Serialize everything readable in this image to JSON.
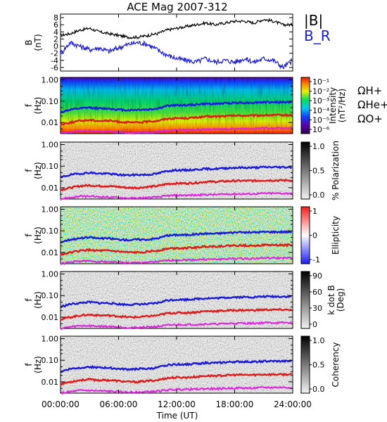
{
  "title": "ACE Mag 2007-312",
  "chart_data": [
    {
      "type": "line",
      "ylabel": "B (nT)",
      "ylim": [
        -7,
        9
      ],
      "yticks": [
        "8",
        "6",
        "4",
        "2",
        "0",
        "-2",
        "-4",
        "-6"
      ],
      "ytick_values": [
        8,
        6,
        4,
        2,
        0,
        -2,
        -4,
        -6
      ],
      "series": [
        {
          "name": "|B|",
          "color": "#000000",
          "x": [
            0,
            1,
            2,
            3,
            4,
            5,
            6,
            7,
            8,
            9,
            10,
            11,
            12,
            13,
            14,
            15,
            16,
            17,
            18,
            19,
            20,
            21,
            22,
            23,
            24
          ],
          "y": [
            3.0,
            3.5,
            4.5,
            5.0,
            4.0,
            3.5,
            3.0,
            2.5,
            2.5,
            3.0,
            3.5,
            4.5,
            5.0,
            5.5,
            6.0,
            6.5,
            6.0,
            6.5,
            7.0,
            7.0,
            6.5,
            7.5,
            7.0,
            6.0,
            6.0
          ]
        },
        {
          "name": "B_R",
          "color": "#1a1adc",
          "x": [
            0,
            1,
            2,
            3,
            4,
            5,
            6,
            7,
            8,
            9,
            10,
            11,
            12,
            13,
            14,
            15,
            16,
            17,
            18,
            19,
            20,
            21,
            22,
            23,
            24
          ],
          "y": [
            -2.0,
            1.0,
            0.0,
            -1.0,
            -0.5,
            -1.5,
            -0.5,
            0.5,
            1.0,
            0.5,
            -1.0,
            -2.5,
            -3.5,
            -4.0,
            -4.5,
            -3.5,
            -4.5,
            -4.0,
            -4.5,
            -3.5,
            -4.5,
            -3.5,
            -4.0,
            -6.0,
            -4.0
          ]
        }
      ]
    },
    {
      "type": "heatmap",
      "ylabel": "f (Hz)",
      "yscale": "log",
      "ylim": [
        0.003,
        1.3
      ],
      "yticks": [
        "1.00",
        "0.10",
        "0.01"
      ],
      "colorbar": {
        "label": "Intensity (nT²/Hz)",
        "ticks": [
          "10⁻¹",
          "10⁻²",
          "10⁻³",
          "10⁻⁴",
          "10⁻⁵",
          "10⁻⁶"
        ],
        "scheme": "rainbow"
      },
      "legend": [
        "ΩH+",
        "ΩHe+",
        "ΩO+"
      ]
    },
    {
      "type": "heatmap",
      "ylabel": "f (Hz)",
      "yscale": "log",
      "colorbar": {
        "label": "% Polarization",
        "ticks": [
          "1.0",
          "0.5",
          "0.0"
        ],
        "scheme": "gray"
      }
    },
    {
      "type": "heatmap",
      "ylabel": "f (Hz)",
      "yscale": "log",
      "colorbar": {
        "label": "Ellipticity",
        "ticks": [
          "1",
          "0",
          "-1"
        ],
        "scheme": "bwr"
      }
    },
    {
      "type": "heatmap",
      "ylabel": "f (Hz)",
      "yscale": "log",
      "colorbar": {
        "label": "k dot B (Deg)",
        "ticks": [
          "90",
          "60",
          "30",
          "0"
        ],
        "scheme": "gray"
      }
    },
    {
      "type": "heatmap",
      "ylabel": "f (Hz)",
      "yscale": "log",
      "colorbar": {
        "label": "Coherency",
        "ticks": [
          "1.0",
          "0.5",
          "0.0"
        ],
        "scheme": "gray"
      }
    }
  ],
  "gyrofrequency_lines": [
    {
      "name": "ΩH+",
      "color": "#1a1adc",
      "x": [
        0,
        1,
        2,
        3,
        4,
        5,
        6,
        7,
        8,
        9,
        10,
        11,
        12,
        13,
        14,
        15,
        16,
        17,
        18,
        19,
        20,
        21,
        22,
        23,
        24
      ],
      "y": [
        0.03,
        0.04,
        0.045,
        0.05,
        0.045,
        0.045,
        0.04,
        0.038,
        0.04,
        0.04,
        0.045,
        0.06,
        0.065,
        0.065,
        0.07,
        0.075,
        0.075,
        0.08,
        0.085,
        0.085,
        0.085,
        0.09,
        0.09,
        0.09,
        0.09
      ]
    },
    {
      "name": "ΩHe+",
      "color": "#e01a1a",
      "x": [
        0,
        1,
        2,
        3,
        4,
        5,
        6,
        7,
        8,
        9,
        10,
        11,
        12,
        13,
        14,
        15,
        16,
        17,
        18,
        19,
        20,
        21,
        22,
        23,
        24
      ],
      "y": [
        0.008,
        0.01,
        0.012,
        0.013,
        0.012,
        0.012,
        0.011,
        0.01,
        0.01,
        0.011,
        0.012,
        0.015,
        0.016,
        0.016,
        0.017,
        0.019,
        0.019,
        0.02,
        0.021,
        0.021,
        0.021,
        0.022,
        0.022,
        0.022,
        0.022
      ]
    },
    {
      "name": "ΩO+",
      "color": "#e020e0",
      "x": [
        0,
        1,
        2,
        3,
        4,
        5,
        6,
        7,
        8,
        9,
        10,
        11,
        12,
        13,
        14,
        15,
        16,
        17,
        18,
        19,
        20,
        21,
        22,
        23,
        24
      ],
      "y": [
        0.003,
        0.0035,
        0.004,
        0.004,
        0.0038,
        0.0037,
        0.0035,
        0.0033,
        0.0033,
        0.0035,
        0.0037,
        0.0042,
        0.0045,
        0.0045,
        0.0046,
        0.0048,
        0.0048,
        0.005,
        0.0052,
        0.0052,
        0.0052,
        0.0055,
        0.0055,
        0.0055,
        0.0055
      ]
    }
  ],
  "xaxis": {
    "label": "Time (UT)",
    "xlim": [
      0,
      24
    ],
    "ticks": [
      "00:00:00",
      "06:00:00",
      "12:00:00",
      "18:00:00",
      "24:00:00"
    ],
    "tick_values": [
      0,
      6,
      12,
      18,
      24
    ]
  }
}
